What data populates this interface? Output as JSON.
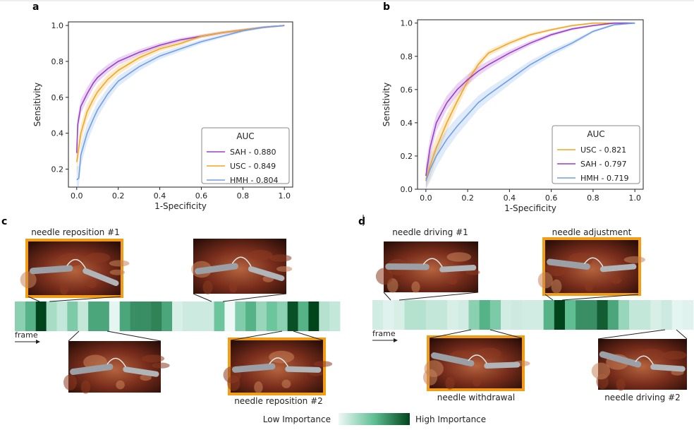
{
  "panels": {
    "a": "a",
    "b": "b",
    "c": "c",
    "d": "d"
  },
  "chart_data": [
    {
      "type": "line",
      "panel": "a",
      "xlabel": "1-Specificity",
      "ylabel": "Sensitivity",
      "xlim": [
        0,
        1
      ],
      "ylim": [
        0.1,
        1.02
      ],
      "xticks": [
        0.0,
        0.2,
        0.4,
        0.6,
        0.8,
        1.0
      ],
      "yticks": [
        0.2,
        0.4,
        0.6,
        0.8,
        1.0
      ],
      "legend_title": "AUC",
      "legend_position": "bottom-right",
      "series": [
        {
          "name": "SAH - 0.880",
          "color": "#9b3fc9",
          "x": [
            0,
            0.005,
            0.02,
            0.05,
            0.08,
            0.1,
            0.15,
            0.2,
            0.3,
            0.4,
            0.5,
            0.6,
            0.7,
            0.8,
            0.9,
            0.95,
            1.0
          ],
          "y": [
            0.29,
            0.45,
            0.55,
            0.62,
            0.68,
            0.71,
            0.76,
            0.8,
            0.85,
            0.89,
            0.92,
            0.94,
            0.96,
            0.975,
            0.99,
            0.995,
            1.0
          ]
        },
        {
          "name": "USC - 0.849",
          "color": "#f2a51d",
          "x": [
            0,
            0.01,
            0.02,
            0.05,
            0.08,
            0.1,
            0.15,
            0.2,
            0.3,
            0.4,
            0.5,
            0.6,
            0.7,
            0.8,
            0.9,
            0.95,
            1.0
          ],
          "y": [
            0.24,
            0.32,
            0.4,
            0.52,
            0.59,
            0.63,
            0.7,
            0.75,
            0.82,
            0.87,
            0.9,
            0.94,
            0.96,
            0.975,
            0.99,
            0.995,
            1.0
          ]
        },
        {
          "name": "HMH - 0.804",
          "color": "#6f9ee8",
          "x": [
            0,
            0.01,
            0.02,
            0.05,
            0.08,
            0.1,
            0.15,
            0.2,
            0.3,
            0.4,
            0.5,
            0.6,
            0.7,
            0.8,
            0.9,
            0.95,
            1.0
          ],
          "y": [
            0.14,
            0.15,
            0.28,
            0.4,
            0.48,
            0.53,
            0.62,
            0.69,
            0.77,
            0.83,
            0.87,
            0.91,
            0.94,
            0.97,
            0.99,
            0.995,
            1.0
          ]
        }
      ]
    },
    {
      "type": "line",
      "panel": "b",
      "xlabel": "1-Specificity",
      "ylabel": "Sensitivity",
      "xlim": [
        0,
        1
      ],
      "ylim": [
        0,
        1.02
      ],
      "xticks": [
        0.0,
        0.2,
        0.4,
        0.6,
        0.8,
        1.0
      ],
      "yticks": [
        0.0,
        0.2,
        0.4,
        0.6,
        0.8,
        1.0
      ],
      "legend_title": "AUC",
      "legend_position": "bottom-right",
      "series": [
        {
          "name": "USC - 0.821",
          "color": "#f2a51d",
          "x": [
            0,
            0.02,
            0.05,
            0.1,
            0.15,
            0.2,
            0.25,
            0.3,
            0.4,
            0.5,
            0.6,
            0.7,
            0.8,
            0.9,
            1.0
          ],
          "y": [
            0.06,
            0.14,
            0.25,
            0.4,
            0.53,
            0.65,
            0.75,
            0.82,
            0.88,
            0.93,
            0.96,
            0.985,
            1.0,
            1.0,
            1.0
          ]
        },
        {
          "name": "SAH - 0.797",
          "color": "#9b3fc9",
          "x": [
            0,
            0.02,
            0.05,
            0.1,
            0.15,
            0.2,
            0.25,
            0.3,
            0.4,
            0.5,
            0.6,
            0.7,
            0.8,
            0.9,
            1.0
          ],
          "y": [
            0.08,
            0.25,
            0.4,
            0.52,
            0.6,
            0.66,
            0.71,
            0.75,
            0.82,
            0.88,
            0.93,
            0.965,
            0.985,
            1.0,
            1.0
          ]
        },
        {
          "name": "HMH - 0.719",
          "color": "#6f9ee8",
          "x": [
            0,
            0.02,
            0.05,
            0.1,
            0.15,
            0.2,
            0.25,
            0.3,
            0.4,
            0.5,
            0.6,
            0.7,
            0.8,
            0.9,
            1.0
          ],
          "y": [
            0.05,
            0.12,
            0.2,
            0.3,
            0.38,
            0.45,
            0.52,
            0.57,
            0.66,
            0.75,
            0.82,
            0.88,
            0.95,
            0.99,
            1.0
          ]
        }
      ]
    },
    {
      "type": "heatmap",
      "panel": "c",
      "axis_label": "frame",
      "values": [
        0.35,
        0.55,
        1.0,
        0.25,
        0.15,
        0.4,
        0.15,
        0.6,
        0.6,
        0.03,
        0.6,
        0.7,
        0.7,
        0.75,
        0.6,
        0.08,
        0.12,
        0.12,
        0.12,
        0.45,
        0.0,
        0.38,
        0.55,
        0.3,
        0.45,
        0.35,
        0.95,
        0.55,
        1.0,
        0.2,
        0.15
      ],
      "annotations": [
        {
          "label": "needle reposition #1",
          "highlighted": true,
          "position": "top"
        },
        {
          "label": "",
          "highlighted": false,
          "position": "top"
        },
        {
          "label": "",
          "highlighted": false,
          "position": "bottom"
        },
        {
          "label": "needle reposition #2",
          "highlighted": true,
          "position": "bottom"
        }
      ]
    },
    {
      "type": "heatmap",
      "panel": "d",
      "axis_label": "frame",
      "values": [
        0.1,
        0.05,
        0.08,
        0.2,
        0.2,
        0.15,
        0.15,
        0.08,
        0.1,
        0.35,
        0.55,
        0.4,
        0.1,
        0.12,
        0.1,
        0.1,
        0.55,
        1.0,
        0.5,
        0.7,
        0.7,
        0.9,
        0.6,
        0.3,
        0.15,
        0.15,
        0.08,
        0.12,
        0.03,
        0.05
      ],
      "annotations": [
        {
          "label": "needle driving #1",
          "highlighted": false,
          "position": "top"
        },
        {
          "label": "needle adjustment",
          "highlighted": true,
          "position": "top"
        },
        {
          "label": "needle withdrawal",
          "highlighted": true,
          "position": "bottom"
        },
        {
          "label": "needle driving #2",
          "highlighted": false,
          "position": "bottom"
        }
      ]
    }
  ],
  "colorbar": {
    "low_label": "Low Importance",
    "high_label": "High Importance",
    "low_color": "#eef8f7",
    "high_color": "#00441b"
  },
  "colors": {
    "highlight_frame": "#f29d12"
  }
}
